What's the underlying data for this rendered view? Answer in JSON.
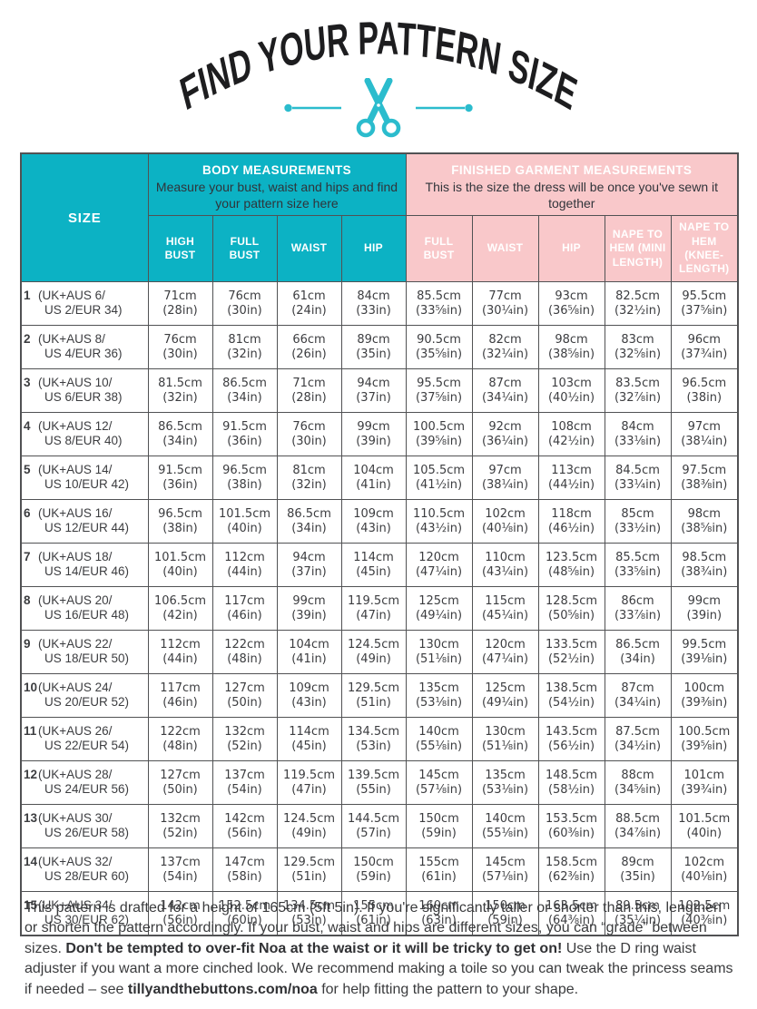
{
  "title": "FIND YOUR PATTERN SIZE",
  "ornament": {
    "icon": "scissors-icon",
    "color": "#2bbccd"
  },
  "colors": {
    "teal": "#0cb2c4",
    "pink": "#f9c8ca",
    "border": "#515254",
    "text_dark": "#3c3d40"
  },
  "table": {
    "size_header": "SIZE",
    "body_group": {
      "title": "BODY MEASUREMENTS",
      "subtitle": "Measure your bust, waist and hips and find your pattern size here",
      "columns": [
        "HIGH BUST",
        "FULL BUST",
        "WAIST",
        "HIP"
      ]
    },
    "garment_group": {
      "title": "FINISHED GARMENT MEASUREMENTS",
      "subtitle": "This is the size the dress will be once you've sewn it together",
      "columns": [
        "FULL BUST",
        "WAIST",
        "HIP",
        "NAPE TO HEM (MINI LENGTH)",
        "NAPE TO HEM (KNEE-LENGTH)"
      ]
    },
    "rows": [
      {
        "size": "1",
        "label": [
          "(UK+AUS 6/",
          "US 2/EUR 34)"
        ],
        "cells": [
          [
            "71cm",
            "(28in)"
          ],
          [
            "76cm",
            "(30in)"
          ],
          [
            "61cm",
            "(24in)"
          ],
          [
            "84cm",
            "(33in)"
          ],
          [
            "85.5cm",
            "(33⅝in)"
          ],
          [
            "77cm",
            "(30¼in)"
          ],
          [
            "93cm",
            "(36⅝in)"
          ],
          [
            "82.5cm",
            "(32½in)"
          ],
          [
            "95.5cm",
            "(37⅝in)"
          ]
        ]
      },
      {
        "size": "2",
        "label": [
          "(UK+AUS 8/",
          "US 4/EUR 36)"
        ],
        "cells": [
          [
            "76cm",
            "(30in)"
          ],
          [
            "81cm",
            "(32in)"
          ],
          [
            "66cm",
            "(26in)"
          ],
          [
            "89cm",
            "(35in)"
          ],
          [
            "90.5cm",
            "(35⅝in)"
          ],
          [
            "82cm",
            "(32¼in)"
          ],
          [
            "98cm",
            "(38⅝in)"
          ],
          [
            "83cm",
            "(32⅝in)"
          ],
          [
            "96cm",
            "(37¾in)"
          ]
        ]
      },
      {
        "size": "3",
        "label": [
          "(UK+AUS 10/",
          "US 6/EUR 38)"
        ],
        "cells": [
          [
            "81.5cm",
            "(32in)"
          ],
          [
            "86.5cm",
            "(34in)"
          ],
          [
            "71cm",
            "(28in)"
          ],
          [
            "94cm",
            "(37in)"
          ],
          [
            "95.5cm",
            "(37⅝in)"
          ],
          [
            "87cm",
            "(34¼in)"
          ],
          [
            "103cm",
            "(40½in)"
          ],
          [
            "83.5cm",
            "(32⅞in)"
          ],
          [
            "96.5cm",
            "(38in)"
          ]
        ]
      },
      {
        "size": "4",
        "label": [
          "(UK+AUS 12/",
          "US 8/EUR 40)"
        ],
        "cells": [
          [
            "86.5cm",
            "(34in)"
          ],
          [
            "91.5cm",
            "(36in)"
          ],
          [
            "76cm",
            "(30in)"
          ],
          [
            "99cm",
            "(39in)"
          ],
          [
            "100.5cm",
            "(39⅝in)"
          ],
          [
            "92cm",
            "(36¼in)"
          ],
          [
            "108cm",
            "(42½in)"
          ],
          [
            "84cm",
            "(33⅛in)"
          ],
          [
            "97cm",
            "(38¼in)"
          ]
        ]
      },
      {
        "size": "5",
        "label": [
          "(UK+AUS 14/",
          "US 10/EUR 42)"
        ],
        "cells": [
          [
            "91.5cm",
            "(36in)"
          ],
          [
            "96.5cm",
            "(38in)"
          ],
          [
            "81cm",
            "(32in)"
          ],
          [
            "104cm",
            "(41in)"
          ],
          [
            "105.5cm",
            "(41½in)"
          ],
          [
            "97cm",
            "(38¼in)"
          ],
          [
            "113cm",
            "(44½in)"
          ],
          [
            "84.5cm",
            "(33¼in)"
          ],
          [
            "97.5cm",
            "(38⅜in)"
          ]
        ]
      },
      {
        "size": "6",
        "label": [
          "(UK+AUS 16/",
          "US 12/EUR 44)"
        ],
        "cells": [
          [
            "96.5cm",
            "(38in)"
          ],
          [
            "101.5cm",
            "(40in)"
          ],
          [
            "86.5cm",
            "(34in)"
          ],
          [
            "109cm",
            "(43in)"
          ],
          [
            "110.5cm",
            "(43½in)"
          ],
          [
            "102cm",
            "(40⅛in)"
          ],
          [
            "118cm",
            "(46½in)"
          ],
          [
            "85cm",
            "(33½in)"
          ],
          [
            "98cm",
            "(38⅝in)"
          ]
        ]
      },
      {
        "size": "7",
        "label": [
          "(UK+AUS 18/",
          "US 14/EUR 46)"
        ],
        "cells": [
          [
            "101.5cm",
            "(40in)"
          ],
          [
            "112cm",
            "(44in)"
          ],
          [
            "94cm",
            "(37in)"
          ],
          [
            "114cm",
            "(45in)"
          ],
          [
            "120cm",
            "(47¼in)"
          ],
          [
            "110cm",
            "(43¼in)"
          ],
          [
            "123.5cm",
            "(48⅝in)"
          ],
          [
            "85.5cm",
            "(33⅝in)"
          ],
          [
            "98.5cm",
            "(38¾in)"
          ]
        ]
      },
      {
        "size": "8",
        "label": [
          "(UK+AUS 20/",
          "US 16/EUR 48)"
        ],
        "cells": [
          [
            "106.5cm",
            "(42in)"
          ],
          [
            "117cm",
            "(46in)"
          ],
          [
            "99cm",
            "(39in)"
          ],
          [
            "119.5cm",
            "(47in)"
          ],
          [
            "125cm",
            "(49¼in)"
          ],
          [
            "115cm",
            "(45¼in)"
          ],
          [
            "128.5cm",
            "(50⅝in)"
          ],
          [
            "86cm",
            "(33⅞in)"
          ],
          [
            "99cm",
            "(39in)"
          ]
        ]
      },
      {
        "size": "9",
        "label": [
          "(UK+AUS 22/",
          "US 18/EUR 50)"
        ],
        "cells": [
          [
            "112cm",
            "(44in)"
          ],
          [
            "122cm",
            "(48in)"
          ],
          [
            "104cm",
            "(41in)"
          ],
          [
            "124.5cm",
            "(49in)"
          ],
          [
            "130cm",
            "(51⅛in)"
          ],
          [
            "120cm",
            "(47¼in)"
          ],
          [
            "133.5cm",
            "(52½in)"
          ],
          [
            "86.5cm",
            "(34in)"
          ],
          [
            "99.5cm",
            "(39⅛in)"
          ]
        ]
      },
      {
        "size": "10",
        "label": [
          "(UK+AUS 24/",
          "US 20/EUR 52)"
        ],
        "cells": [
          [
            "117cm",
            "(46in)"
          ],
          [
            "127cm",
            "(50in)"
          ],
          [
            "109cm",
            "(43in)"
          ],
          [
            "129.5cm",
            "(51in)"
          ],
          [
            "135cm",
            "(53⅛in)"
          ],
          [
            "125cm",
            "(49¼in)"
          ],
          [
            "138.5cm",
            "(54½in)"
          ],
          [
            "87cm",
            "(34¼in)"
          ],
          [
            "100cm",
            "(39⅜in)"
          ]
        ]
      },
      {
        "size": "11",
        "label": [
          "(UK+AUS 26/",
          "US 22/EUR 54)"
        ],
        "cells": [
          [
            "122cm",
            "(48in)"
          ],
          [
            "132cm",
            "(52in)"
          ],
          [
            "114cm",
            "(45in)"
          ],
          [
            "134.5cm",
            "(53in)"
          ],
          [
            "140cm",
            "(55⅛in)"
          ],
          [
            "130cm",
            "(51⅛in)"
          ],
          [
            "143.5cm",
            "(56½in)"
          ],
          [
            "87.5cm",
            "(34½in)"
          ],
          [
            "100.5cm",
            "(39⅝in)"
          ]
        ]
      },
      {
        "size": "12",
        "label": [
          "(UK+AUS 28/",
          "US 24/EUR 56)"
        ],
        "cells": [
          [
            "127cm",
            "(50in)"
          ],
          [
            "137cm",
            "(54in)"
          ],
          [
            "119.5cm",
            "(47in)"
          ],
          [
            "139.5cm",
            "(55in)"
          ],
          [
            "145cm",
            "(57⅛in)"
          ],
          [
            "135cm",
            "(53⅛in)"
          ],
          [
            "148.5cm",
            "(58½in)"
          ],
          [
            "88cm",
            "(34⅝in)"
          ],
          [
            "101cm",
            "(39¾in)"
          ]
        ]
      },
      {
        "size": "13",
        "label": [
          "(UK+AUS 30/",
          "US 26/EUR 58)"
        ],
        "cells": [
          [
            "132cm",
            "(52in)"
          ],
          [
            "142cm",
            "(56in)"
          ],
          [
            "124.5cm",
            "(49in)"
          ],
          [
            "144.5cm",
            "(57in)"
          ],
          [
            "150cm",
            "(59in)"
          ],
          [
            "140cm",
            "(55⅛in)"
          ],
          [
            "153.5cm",
            "(60⅜in)"
          ],
          [
            "88.5cm",
            "(34⅞in)"
          ],
          [
            "101.5cm",
            "(40in)"
          ]
        ]
      },
      {
        "size": "14",
        "label": [
          "(UK+AUS 32/",
          "US 28/EUR 60)"
        ],
        "cells": [
          [
            "137cm",
            "(54in)"
          ],
          [
            "147cm",
            "(58in)"
          ],
          [
            "129.5cm",
            "(51in)"
          ],
          [
            "150cm",
            "(59in)"
          ],
          [
            "155cm",
            "(61in)"
          ],
          [
            "145cm",
            "(57⅛in)"
          ],
          [
            "158.5cm",
            "(62⅜in)"
          ],
          [
            "89cm",
            "(35in)"
          ],
          [
            "102cm",
            "(40⅛in)"
          ]
        ]
      },
      {
        "size": "15",
        "label": [
          "(UK+AUS 34/",
          "US 30/EUR 62)"
        ],
        "cells": [
          [
            "142cm",
            "(56in)"
          ],
          [
            "152.5cm",
            "(60in)"
          ],
          [
            "134.5cm",
            "(53in)"
          ],
          [
            "155cm",
            "(61in)"
          ],
          [
            "160cm",
            "(63in)"
          ],
          [
            "150cm",
            "(59in)"
          ],
          [
            "163.5cm",
            "(64⅜in)"
          ],
          [
            "89.5cm",
            "(35¼in)"
          ],
          [
            "102.5cm",
            "(40⅜in)"
          ]
        ]
      }
    ]
  },
  "footer": {
    "segments": [
      {
        "bold": false,
        "text": "This pattern is drafted for a height of 165cm (5ft 5in). If you're significantly taller or shorter than this, lengthen or shorten the pattern accordingly. If your bust, waist and hips are different sizes, you can “grade” between sizes. "
      },
      {
        "bold": true,
        "text": "Don't be tempted to over-fit Noa at the waist or it will be tricky to get on!"
      },
      {
        "bold": false,
        "text": " Use the D ring waist adjuster if you want a more cinched look. We recommend making a toile so you can tweak the princess seams if needed – see "
      },
      {
        "bold": true,
        "text": "tillyandthebuttons.com/noa"
      },
      {
        "bold": false,
        "text": " for help fitting the pattern to your shape."
      }
    ]
  }
}
